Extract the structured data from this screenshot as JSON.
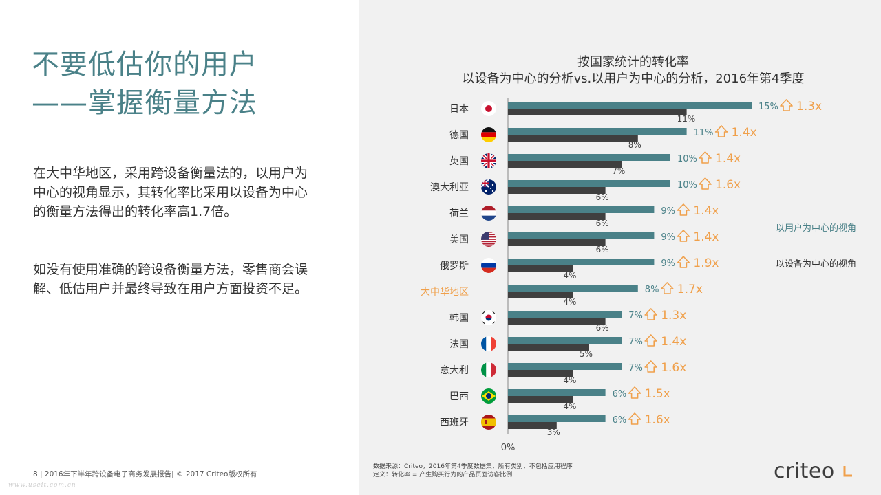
{
  "title_lines": [
    "不要低估你的用户",
    "——掌握衡量方法"
  ],
  "paragraph1": "在大中华地区，采用跨设备衡量法的，以用户为中心的视角显示，其转化率比采用以设备为中心的衡量方法得出的转化率高1.7倍。",
  "paragraph2": "如没有使用准确的跨设备衡量方法，零售商会误解、低估用户并最终导致在用户方面投资不足。",
  "footer": "8 | 2016年下半年跨设备电子商务发展报告| © 2017 Criteo版权所有",
  "watermark": "www.useit.com.cn",
  "source_lines": [
    "数据来源：Criteo，2016年第4季度数据集，所有类别，不包括应用程序",
    "定义：转化率 = 产生购买行为的产品页面访客比例"
  ],
  "logo_text": "criteo",
  "colors": {
    "title": "#4a8188",
    "user_bar": "#4a8188",
    "device_bar": "#3f3f3f",
    "accent": "#f0a04b",
    "right_bg": "#f1f1f1"
  },
  "chart_data": {
    "type": "bar",
    "orientation": "horizontal",
    "title": "按国家统计的转化率",
    "subtitle": "以设备为中心的分析vs.以用户为中心的分析，2016年第4季度",
    "zero_label": "0%",
    "highlight_category": "大中华地区",
    "categories": [
      "日本",
      "德国",
      "英国",
      "澳大利亚",
      "荷兰",
      "美国",
      "俄罗斯",
      "大中华地区",
      "韩国",
      "法国",
      "意大利",
      "巴西",
      "西班牙"
    ],
    "flag_icons": [
      "japan-flag-icon",
      "germany-flag-icon",
      "uk-flag-icon",
      "australia-flag-icon",
      "netherlands-flag-icon",
      "usa-flag-icon",
      "russia-flag-icon",
      "",
      "korea-flag-icon",
      "france-flag-icon",
      "italy-flag-icon",
      "brazil-flag-icon",
      "spain-flag-icon"
    ],
    "series": [
      {
        "name": "以用户为中心的视角",
        "values": [
          15,
          11,
          10,
          10,
          9,
          9,
          9,
          8,
          7,
          7,
          7,
          6,
          6
        ],
        "labels": [
          "15%",
          "11%",
          "10%",
          "10%",
          "9%",
          "9%",
          "9%",
          "8%",
          "7%",
          "7%",
          "7%",
          "6%",
          "6%"
        ]
      },
      {
        "name": "以设备为中心的视角",
        "values": [
          11,
          8,
          7,
          6,
          6,
          6,
          4,
          4,
          6,
          5,
          4,
          4,
          3
        ],
        "labels": [
          "11%",
          "8%",
          "7%",
          "6%",
          "6%",
          "6%",
          "4%",
          "4%",
          "6%",
          "5%",
          "4%",
          "4%",
          "3%"
        ]
      }
    ],
    "uplift": [
      "1.3x",
      "1.4x",
      "1.4x",
      "1.6x",
      "1.4x",
      "1.4x",
      "1.9x",
      "1.7x",
      "1.3x",
      "1.4x",
      "1.6x",
      "1.5x",
      "1.6x"
    ],
    "xlim": [
      0,
      15
    ]
  }
}
